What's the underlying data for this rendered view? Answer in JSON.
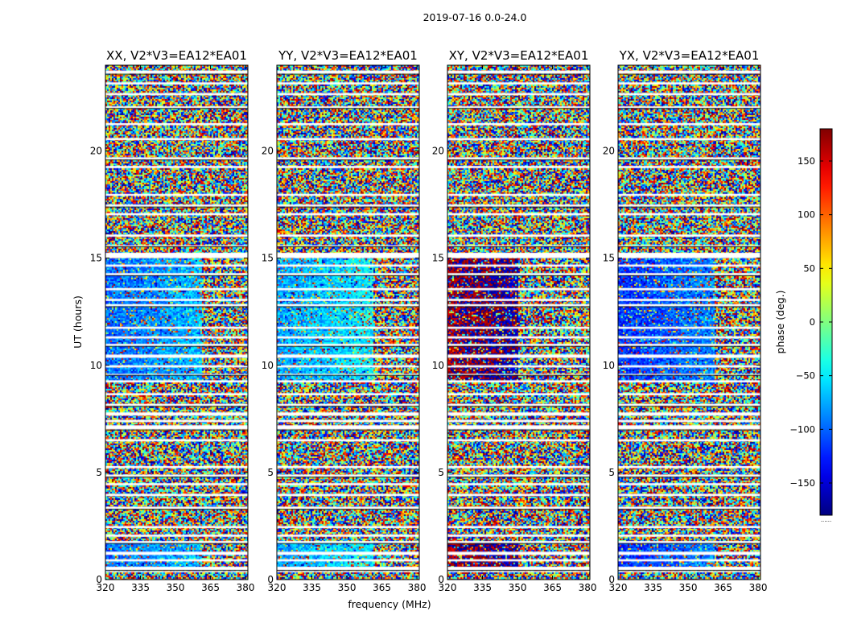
{
  "chart_data": {
    "type": "heatmap",
    "suptitle": "2019-07-16 0.0-24.0",
    "xlabel": "frequency (MHz)",
    "ylabel": "UT (hours)",
    "xlim": [
      320,
      381
    ],
    "ylim": [
      0,
      24
    ],
    "xticks": [
      320,
      335,
      350,
      365,
      380
    ],
    "yticks": [
      0,
      5,
      10,
      15,
      20
    ],
    "colorbar": {
      "label": "phase (deg.)",
      "range": [
        -180,
        180
      ],
      "ticks": [
        150,
        100,
        50,
        0,
        -50,
        -100,
        -150
      ],
      "tick_labels": [
        "150",
        "100",
        "50",
        "0",
        "−50",
        "−100",
        "−150"
      ],
      "footer": "......"
    },
    "panels": [
      {
        "title": "XX, V2*V3=EA12*EA01",
        "coherent_phase_deg": -100,
        "coherent_until_mhz": 361
      },
      {
        "title": "YY, V2*V3=EA12*EA01",
        "coherent_phase_deg": -80,
        "coherent_until_mhz": 361
      },
      {
        "title": "XY, V2*V3=EA12*EA01",
        "coherent_phase_deg": 170,
        "coherent_until_mhz": 350
      },
      {
        "title": "YX, V2*V3=EA12*EA01",
        "coherent_phase_deg": -120,
        "coherent_until_mhz": 361
      }
    ],
    "flagged_bands_hours": [
      [
        23.6,
        23.75
      ],
      [
        23.1,
        23.2
      ],
      [
        22.6,
        22.7
      ],
      [
        22.0,
        22.08
      ],
      [
        21.2,
        21.3
      ],
      [
        20.5,
        20.6
      ],
      [
        19.6,
        19.7
      ],
      [
        19.2,
        19.3
      ],
      [
        17.9,
        18.0
      ],
      [
        17.4,
        17.5
      ],
      [
        17.0,
        17.1
      ],
      [
        16.0,
        16.1
      ],
      [
        15.55,
        15.6
      ],
      [
        15.0,
        15.25
      ],
      [
        14.6,
        14.7
      ],
      [
        14.2,
        14.3
      ],
      [
        13.5,
        13.6
      ],
      [
        13.0,
        13.1
      ],
      [
        12.75,
        12.85
      ],
      [
        11.7,
        11.8
      ],
      [
        11.25,
        11.35
      ],
      [
        10.9,
        11.0
      ],
      [
        10.35,
        10.5
      ],
      [
        9.9,
        10.0
      ],
      [
        9.55,
        9.6
      ],
      [
        9.2,
        9.3
      ],
      [
        8.6,
        8.7
      ],
      [
        8.1,
        8.2
      ],
      [
        7.65,
        7.8
      ],
      [
        7.35,
        7.45
      ],
      [
        7.0,
        7.2
      ],
      [
        6.45,
        6.55
      ],
      [
        5.2,
        5.3
      ],
      [
        4.8,
        4.9
      ],
      [
        4.4,
        4.5
      ],
      [
        3.9,
        4.0
      ],
      [
        3.3,
        3.4
      ],
      [
        2.4,
        2.5
      ],
      [
        2.0,
        2.1
      ],
      [
        1.7,
        1.8
      ],
      [
        1.15,
        1.3
      ],
      [
        0.85,
        0.95
      ],
      [
        0.45,
        0.6
      ],
      [
        0.35,
        0.4
      ]
    ]
  }
}
